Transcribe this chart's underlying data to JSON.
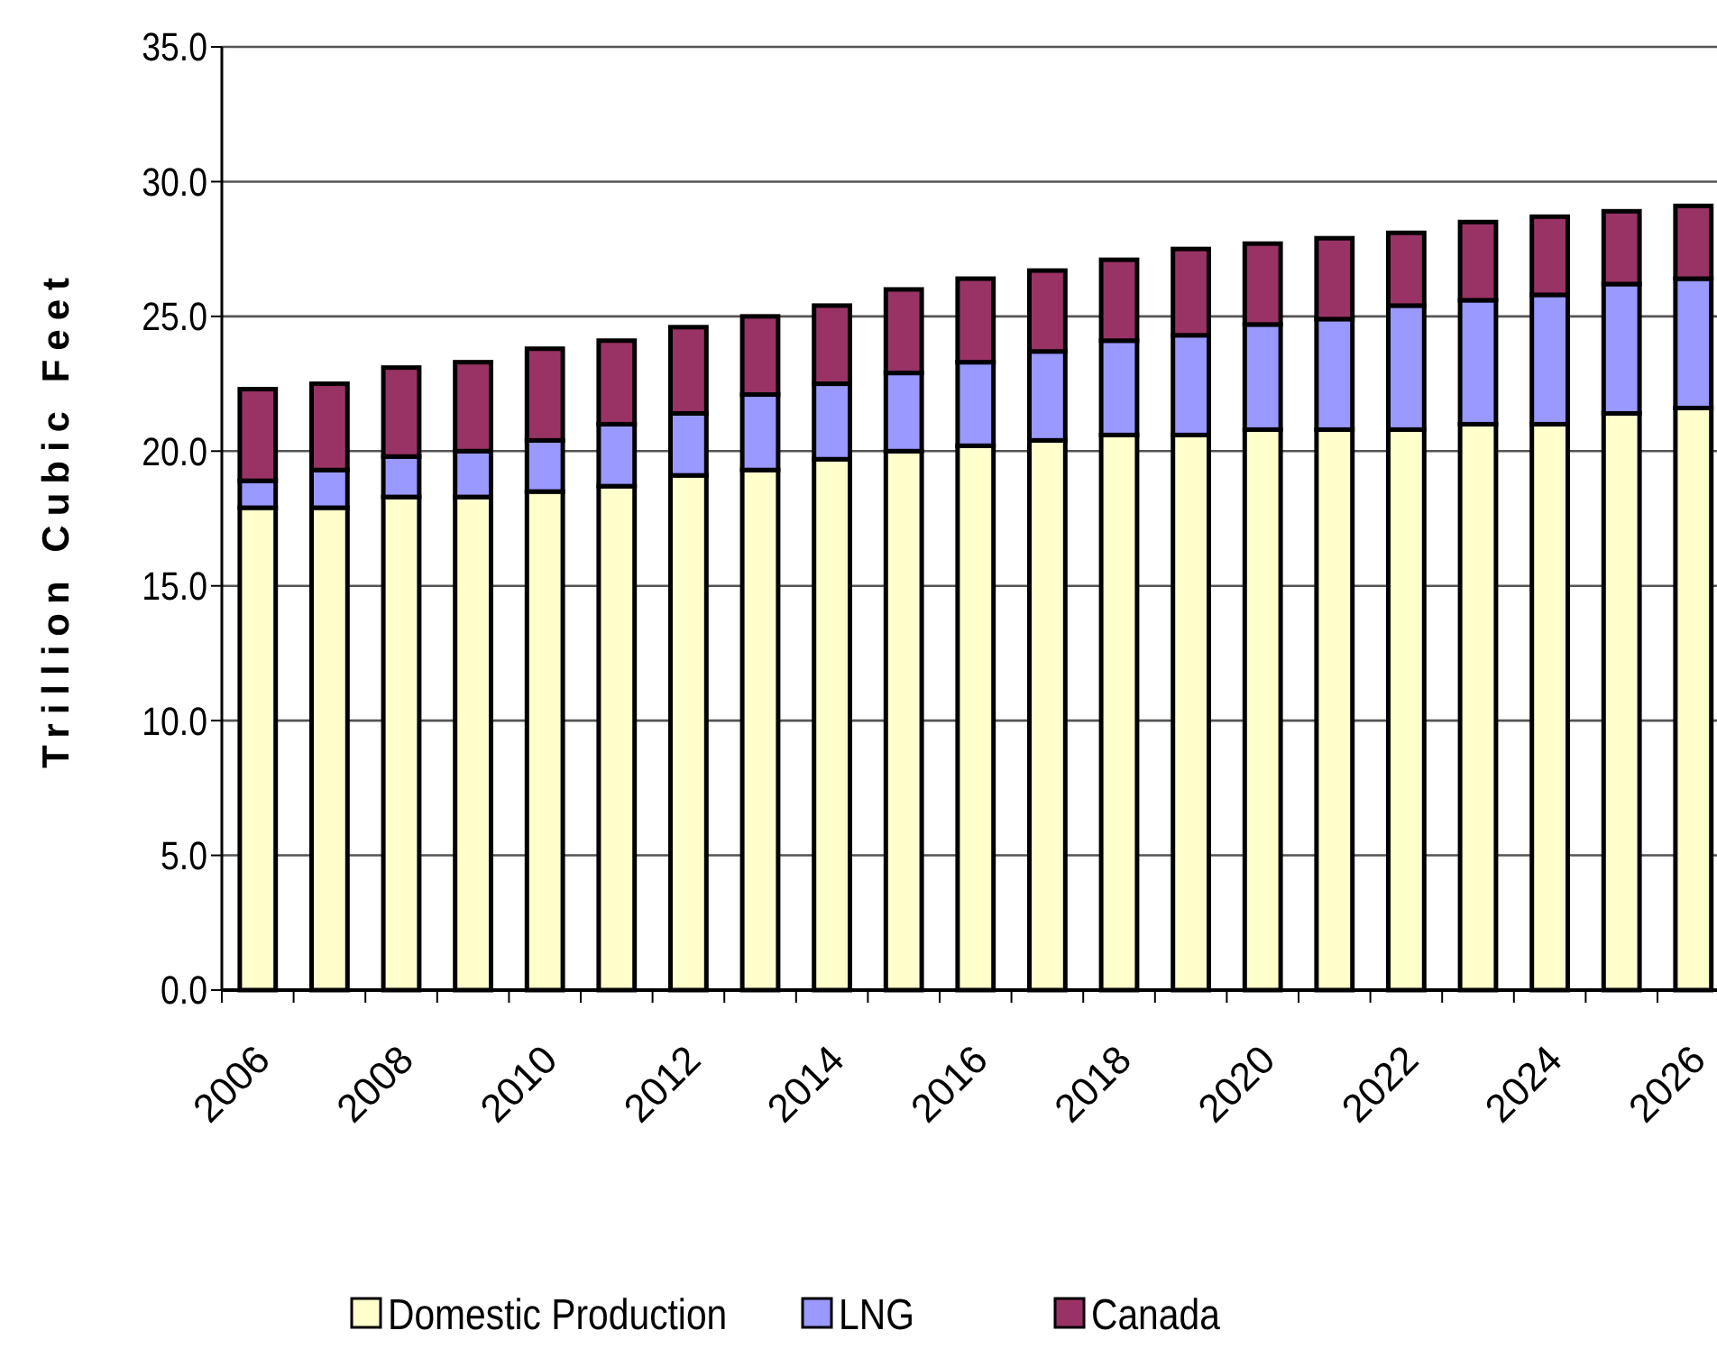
{
  "chart_data": {
    "type": "bar",
    "stacked": true,
    "ylabel": "Trillion Cubic Feet",
    "categories": [
      "2006",
      null,
      "2008",
      null,
      "2010",
      null,
      "2012",
      null,
      "2014",
      null,
      "2016",
      null,
      "2018",
      null,
      "2020",
      null,
      "2022",
      null,
      "2024",
      null,
      "2026"
    ],
    "series": [
      {
        "name": "Domestic Production",
        "color": "#ffffcc",
        "values": [
          17.9,
          17.9,
          18.3,
          18.3,
          18.5,
          18.7,
          19.1,
          19.3,
          19.7,
          20.0,
          20.2,
          20.4,
          20.6,
          20.6,
          20.8,
          20.8,
          20.8,
          21.0,
          21.0,
          21.4,
          21.6
        ]
      },
      {
        "name": "LNG",
        "color": "#9999ff",
        "values": [
          1.0,
          1.4,
          1.5,
          1.7,
          1.9,
          2.3,
          2.3,
          2.8,
          2.8,
          2.9,
          3.1,
          3.3,
          3.5,
          3.7,
          3.9,
          4.1,
          4.6,
          4.6,
          4.8,
          4.8,
          4.8
        ]
      },
      {
        "name": "Canada",
        "color": "#993366",
        "values": [
          3.4,
          3.2,
          3.3,
          3.3,
          3.4,
          3.1,
          3.2,
          2.9,
          2.9,
          3.1,
          3.1,
          3.0,
          3.0,
          3.2,
          3.0,
          3.0,
          2.7,
          2.9,
          2.9,
          2.7,
          2.7
        ]
      }
    ],
    "ylim": [
      0,
      35
    ],
    "yticks": [
      {
        "value": 0,
        "label": "0.0"
      },
      {
        "value": 5,
        "label": "5.0"
      },
      {
        "value": 10,
        "label": "10.0"
      },
      {
        "value": 15,
        "label": "15.0"
      },
      {
        "value": 20,
        "label": "20.0"
      },
      {
        "value": 25,
        "label": "25.0"
      },
      {
        "value": 30,
        "label": "30.0"
      },
      {
        "value": 35,
        "label": "35.0"
      }
    ],
    "grid": "y",
    "legend": "bottom"
  }
}
